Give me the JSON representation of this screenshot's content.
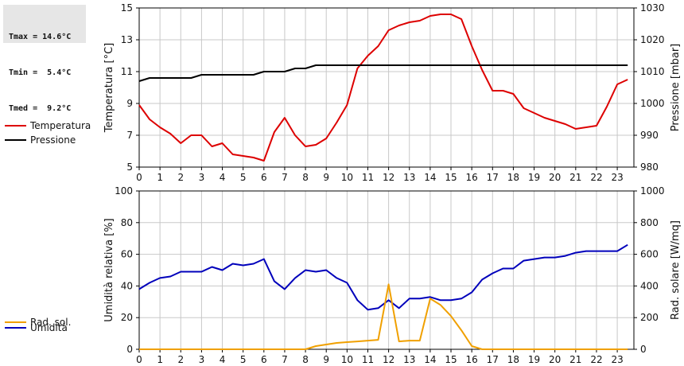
{
  "stats": {
    "tmax": "Tmax = 14.6°C",
    "tmin": "Tmin =  5.4°C",
    "tmed": "Tmed =  9.2°C"
  },
  "colors": {
    "temperatura": "#dd0000",
    "pressione": "#000000",
    "umidita": "#0000bb",
    "rad_sol": "#f0a000",
    "grid": "#c8c8c8"
  },
  "chart_data": [
    {
      "type": "line",
      "title": "",
      "xlabel": "",
      "ylabel": "Temperatura [°C]",
      "y2label": "Pressione [mbar]",
      "xlim": [
        0,
        23.8
      ],
      "ylim": [
        5,
        15
      ],
      "y2lim": [
        980,
        1030
      ],
      "x_ticks": [
        "0",
        "1",
        "2",
        "3",
        "4",
        "5",
        "6",
        "7",
        "8",
        "9",
        "10",
        "11",
        "12",
        "13",
        "14",
        "15",
        "16",
        "17",
        "18",
        "19",
        "20",
        "21",
        "22",
        "23"
      ],
      "y_ticks": [
        "5",
        "7",
        "9",
        "11",
        "13",
        "15"
      ],
      "y2_ticks": [
        "980",
        "990",
        "1000",
        "1010",
        "1020",
        "1030"
      ],
      "grid": true,
      "legend_position": "left",
      "series": [
        {
          "name": "Temperatura",
          "axis": "left",
          "color": "#dd0000",
          "x": [
            0,
            0.5,
            1,
            1.5,
            2,
            2.5,
            3,
            3.5,
            4,
            4.5,
            5,
            5.5,
            6,
            6.5,
            7,
            7.5,
            8,
            8.5,
            9,
            9.5,
            10,
            10.5,
            11,
            11.5,
            12,
            12.5,
            13,
            13.5,
            14,
            14.5,
            15,
            15.5,
            16,
            16.5,
            17,
            17.5,
            18,
            18.5,
            19,
            19.5,
            20,
            20.5,
            21,
            21.5,
            22,
            22.5,
            23,
            23.5
          ],
          "values": [
            8.9,
            8.0,
            7.5,
            7.1,
            6.5,
            7.0,
            7.0,
            6.3,
            6.5,
            5.8,
            5.7,
            5.6,
            5.4,
            7.2,
            8.1,
            7.0,
            6.3,
            6.4,
            6.8,
            7.8,
            8.9,
            11.2,
            12.0,
            12.6,
            13.6,
            13.9,
            14.1,
            14.2,
            14.5,
            14.6,
            14.6,
            14.3,
            12.6,
            11.1,
            9.8,
            9.8,
            9.6,
            8.7,
            8.4,
            8.1,
            7.9,
            7.7,
            7.4,
            7.5,
            7.6,
            8.8,
            10.2,
            10.5
          ]
        },
        {
          "name": "Pressione",
          "axis": "right",
          "color": "#000000",
          "x": [
            0,
            0.5,
            1,
            1.5,
            2,
            2.5,
            3,
            3.5,
            4,
            4.5,
            5,
            5.5,
            6,
            6.5,
            7,
            7.5,
            8,
            8.5,
            9,
            9.5,
            10,
            10.5,
            11,
            11.5,
            12,
            12.5,
            13,
            13.5,
            14,
            14.5,
            15,
            15.5,
            16,
            16.5,
            17,
            17.5,
            18,
            18.5,
            19,
            19.5,
            20,
            20.5,
            21,
            21.5,
            22,
            22.5,
            23,
            23.5
          ],
          "values": [
            1007.0,
            1008.0,
            1008.0,
            1008.0,
            1008.0,
            1008.0,
            1009.0,
            1009.0,
            1009.0,
            1009.0,
            1009.0,
            1009.0,
            1010.0,
            1010.0,
            1010.0,
            1011.0,
            1011.0,
            1012.0,
            1012.0,
            1012.0,
            1012.0,
            1012.0,
            1012.0,
            1012.0,
            1012.0,
            1012.0,
            1012.0,
            1012.0,
            1012.0,
            1012.0,
            1012.0,
            1012.0,
            1012.0,
            1012.0,
            1012.0,
            1012.0,
            1012.0,
            1012.0,
            1012.0,
            1012.0,
            1012.0,
            1012.0,
            1012.0,
            1012.0,
            1012.0,
            1012.0,
            1012.0,
            1012.0
          ]
        }
      ]
    },
    {
      "type": "line",
      "title": "",
      "xlabel": "",
      "ylabel": "Umidità relativa [%]",
      "y2label": "Rad. solare [W/mq]",
      "xlim": [
        0,
        23.8
      ],
      "ylim": [
        0,
        100
      ],
      "y2lim": [
        0,
        1000
      ],
      "x_ticks": [
        "0",
        "1",
        "2",
        "3",
        "4",
        "5",
        "6",
        "7",
        "8",
        "9",
        "10",
        "11",
        "12",
        "13",
        "14",
        "15",
        "16",
        "17",
        "18",
        "19",
        "20",
        "21",
        "22",
        "23"
      ],
      "y_ticks": [
        "0",
        "20",
        "40",
        "60",
        "80",
        "100"
      ],
      "y2_ticks": [
        "0",
        "200",
        "400",
        "600",
        "800",
        "1000"
      ],
      "grid": true,
      "legend_position": "left",
      "series": [
        {
          "name": "Umidità",
          "axis": "left",
          "color": "#0000bb",
          "x": [
            0,
            0.5,
            1,
            1.5,
            2,
            2.5,
            3,
            3.5,
            4,
            4.5,
            5,
            5.5,
            6,
            6.5,
            7,
            7.5,
            8,
            8.5,
            9,
            9.5,
            10,
            10.5,
            11,
            11.5,
            12,
            12.5,
            13,
            13.5,
            14,
            14.5,
            15,
            15.5,
            16,
            16.5,
            17,
            17.5,
            18,
            18.5,
            19,
            19.5,
            20,
            20.5,
            21,
            21.5,
            22,
            22.5,
            23,
            23.5
          ],
          "values": [
            38,
            42,
            45,
            46,
            49,
            49,
            49,
            52,
            50,
            54,
            53,
            54,
            57,
            43,
            38,
            45,
            50,
            49,
            50,
            45,
            42,
            31,
            25,
            26,
            31,
            26,
            32,
            32,
            33,
            31,
            31,
            32,
            36,
            44,
            48,
            51,
            51,
            56,
            57,
            58,
            58,
            59,
            61,
            62,
            62,
            62,
            62,
            66
          ]
        },
        {
          "name": "Rad. sol.",
          "axis": "right",
          "color": "#f0a000",
          "x": [
            0,
            1,
            2,
            3,
            4,
            5,
            6,
            7,
            8,
            8.5,
            9,
            9.5,
            10,
            10.5,
            11,
            11.5,
            12,
            12.5,
            13,
            13.5,
            14,
            14.5,
            15,
            15.5,
            16,
            16.5,
            17,
            18,
            19,
            20,
            21,
            22,
            23,
            23.5
          ],
          "values": [
            0,
            0,
            0,
            0,
            0,
            0,
            0,
            0,
            0,
            20,
            30,
            40,
            45,
            50,
            55,
            60,
            410,
            50,
            55,
            55,
            320,
            280,
            210,
            120,
            20,
            0,
            0,
            0,
            0,
            0,
            0,
            0,
            0,
            0
          ]
        }
      ]
    }
  ]
}
